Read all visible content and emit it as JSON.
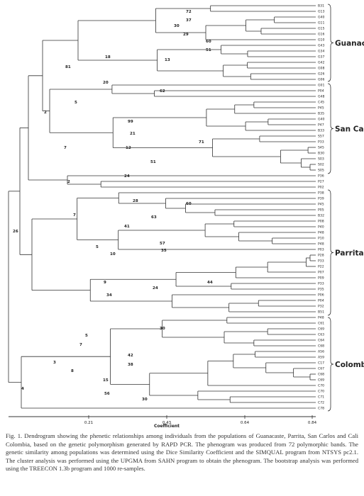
{
  "figure": {
    "leaves": [
      "B31",
      "G13",
      "G40",
      "G11",
      "G15",
      "G16",
      "G10",
      "G43",
      "G34",
      "G37",
      "G42",
      "G08",
      "G26",
      "G06",
      "G01",
      "P04",
      "G48",
      "C45",
      "P45",
      "B35",
      "G40",
      "P47",
      "B33",
      "S57",
      "P33",
      "S45",
      "B30",
      "S03",
      "S02",
      "S05",
      "P36",
      "P27",
      "P02",
      "P38",
      "P39",
      "P45",
      "P05",
      "B32",
      "P08",
      "P40",
      "P48",
      "P10",
      "P48",
      "P03",
      "P28",
      "P33",
      "P22",
      "P07",
      "P09",
      "P33",
      "P35",
      "P06",
      "P04",
      "P32",
      "B51",
      "P48",
      "C61",
      "C69",
      "C63",
      "C64",
      "C68",
      "A56",
      "A59",
      "C17",
      "C67",
      "C68",
      "C69",
      "C70",
      "C70",
      "C71",
      "C72",
      "C78"
    ],
    "groups": [
      "Guanacaste",
      "San Carlos",
      "Parrita",
      "Colombia"
    ],
    "bootstrap": [
      "72",
      "37",
      "29",
      "60",
      "51",
      "30",
      "13",
      "18",
      "81",
      "20",
      "62",
      "5",
      "2",
      "99",
      "21",
      "71",
      "12",
      "51",
      "7",
      "24",
      "2",
      "26",
      "7",
      "28",
      "60",
      "63",
      "41",
      "5",
      "57",
      "35",
      "10",
      "44",
      "9",
      "24",
      "34",
      "30",
      "5",
      "7",
      "42",
      "38",
      "8",
      "15",
      "56",
      "30",
      "3",
      "4"
    ],
    "axis": {
      "ticks": [
        "0.21",
        "0.43",
        "0.64",
        "0.84"
      ],
      "label": "Coefficient"
    },
    "caption": "Fig. 1. Dendrogram showing the phenetic relationships among individuals from the populations of Guanacaste, Parrita, San Carlos and Cali Colombia, based on the genetic polymorphism generated by RAPD PCR. The phenogram was produced from 72 polymorphic bands. The genetic similarity among populations was determined using the Dice Similarity Coefficient and the SIMQUAL program from NTSYS pc2.1. The cluster analysis was performed using the UPGMA from SAHN program to obtain the phenogram. The bootstrap analysis was performed using the TREECON 1.3b program and 1000 re-samples."
  }
}
